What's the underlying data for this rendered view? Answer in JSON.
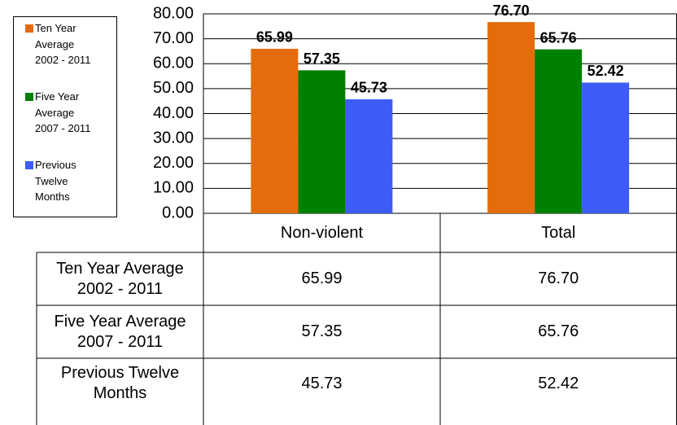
{
  "chart_data": {
    "type": "bar",
    "categories": [
      "Non-violent",
      "Total"
    ],
    "series": [
      {
        "name": "Ten Year Average 2002 - 2011",
        "color": "#e46c0a",
        "values": [
          65.99,
          76.7
        ],
        "value_labels": [
          "65.99",
          "76.70"
        ]
      },
      {
        "name": "Five Year Average 2007 - 2011",
        "color": "#008000",
        "values": [
          57.35,
          65.76
        ],
        "value_labels": [
          "57.35",
          "65.76"
        ]
      },
      {
        "name": "Previous Twelve Months",
        "color": "#3d5cf5",
        "values": [
          45.73,
          52.42
        ],
        "value_labels": [
          "45.73",
          "52.42"
        ]
      }
    ],
    "ylim": [
      0,
      80
    ],
    "yticks": [
      {
        "value": 0,
        "label": "0.00"
      },
      {
        "value": 10,
        "label": "10.00"
      },
      {
        "value": 20,
        "label": "20.00"
      },
      {
        "value": 30,
        "label": "30.00"
      },
      {
        "value": 40,
        "label": "40.00"
      },
      {
        "value": 50,
        "label": "50.00"
      },
      {
        "value": 60,
        "label": "60.00"
      },
      {
        "value": 70,
        "label": "70.00"
      },
      {
        "value": 80,
        "label": "80.00"
      }
    ],
    "grid": true,
    "legend": "left"
  }
}
